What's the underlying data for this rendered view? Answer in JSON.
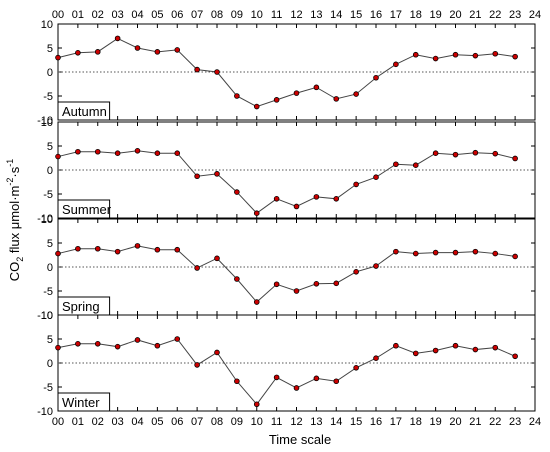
{
  "chart_data": {
    "type": "line",
    "xlabel": "Time scale",
    "ylabel": "CO2 flux μmol·m-2·s-1",
    "ylabel_parts": {
      "co": "CO",
      "sub2": "2",
      "mid": " flux μmol·m",
      "sup1": "-2",
      "dot": "·s",
      "sup2": "-1"
    },
    "xlim": [
      0,
      24
    ],
    "ylim": [
      -10,
      10
    ],
    "x_ticks": [
      "00",
      "01",
      "02",
      "03",
      "04",
      "05",
      "06",
      "07",
      "08",
      "09",
      "10",
      "11",
      "12",
      "13",
      "14",
      "15",
      "16",
      "17",
      "18",
      "19",
      "20",
      "21",
      "22",
      "23",
      "24"
    ],
    "y_ticks": [
      "-10",
      "-5",
      "0",
      "5",
      "10"
    ],
    "x": [
      0,
      1,
      2,
      3,
      4,
      5,
      6,
      7,
      8,
      9,
      10,
      11,
      12,
      13,
      14,
      15,
      16,
      17,
      18,
      19,
      20,
      21,
      22,
      23
    ],
    "reference_line": 0,
    "colors": {
      "line": "#444444",
      "marker": "#cc0000",
      "marker_edge": "#000000",
      "zero_line": "#555555"
    },
    "panels": [
      {
        "name": "Autumn",
        "values": [
          3.0,
          4.0,
          4.2,
          7.0,
          5.0,
          4.2,
          4.6,
          0.5,
          0.0,
          -5.0,
          -7.2,
          -5.8,
          -4.4,
          -3.2,
          -5.6,
          -4.6,
          -1.2,
          1.6,
          3.6,
          2.8,
          3.6,
          3.4,
          3.8,
          3.2
        ]
      },
      {
        "name": "Summer",
        "values": [
          2.8,
          3.8,
          3.8,
          3.5,
          4.0,
          3.5,
          3.5,
          -1.3,
          -0.8,
          -4.6,
          -9.0,
          -6.0,
          -7.6,
          -5.6,
          -6.0,
          -3.0,
          -1.5,
          1.2,
          1.0,
          3.5,
          3.2,
          3.6,
          3.4,
          2.4
        ]
      },
      {
        "name": "Spring",
        "values": [
          2.8,
          3.8,
          3.8,
          3.2,
          4.4,
          3.6,
          3.6,
          -0.2,
          1.8,
          -2.5,
          -7.3,
          -3.6,
          -5.0,
          -3.5,
          -3.4,
          -1.0,
          0.2,
          3.2,
          2.8,
          3.0,
          3.0,
          3.2,
          2.8,
          2.2
        ]
      },
      {
        "name": "Winter",
        "values": [
          3.2,
          4.0,
          4.0,
          3.4,
          4.8,
          3.6,
          5.0,
          -0.4,
          2.2,
          -3.8,
          -8.6,
          -3.0,
          -5.2,
          -3.2,
          -3.8,
          -1.0,
          1.0,
          3.6,
          2.0,
          2.6,
          3.6,
          2.8,
          3.2,
          1.4
        ]
      }
    ]
  }
}
